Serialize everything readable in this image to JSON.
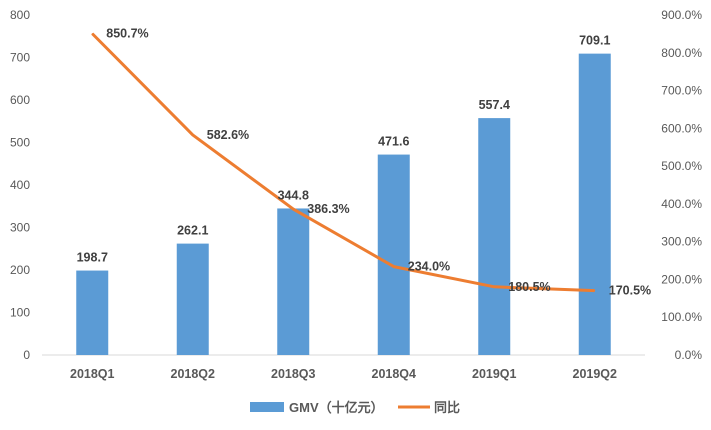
{
  "chart_data": {
    "type": "bar",
    "title": "",
    "categories": [
      "2018Q1",
      "2018Q2",
      "2018Q3",
      "2018Q4",
      "2019Q1",
      "2019Q2"
    ],
    "series": [
      {
        "name": "GMV（十亿元）",
        "type": "bar",
        "axis": "left",
        "color": "#5B9BD5",
        "values": [
          198.7,
          262.1,
          344.8,
          471.6,
          557.4,
          709.1
        ],
        "labels": [
          "198.7",
          "262.1",
          "344.8",
          "471.6",
          "557.4",
          "709.1"
        ]
      },
      {
        "name": "同比",
        "type": "line",
        "axis": "right",
        "color": "#ED7D31",
        "values": [
          850.7,
          582.6,
          386.3,
          234.0,
          180.5,
          170.5
        ],
        "labels": [
          "850.7%",
          "582.6%",
          "386.3%",
          "234.0%",
          "180.5%",
          "170.5%"
        ]
      }
    ],
    "left_axis": {
      "ylim": [
        0,
        800
      ],
      "ticks": [
        "0",
        "100",
        "200",
        "300",
        "400",
        "500",
        "600",
        "700",
        "800"
      ]
    },
    "right_axis": {
      "ylim": [
        0,
        900
      ],
      "ticks": [
        "0.0%",
        "100.0%",
        "200.0%",
        "300.0%",
        "400.0%",
        "500.0%",
        "600.0%",
        "700.0%",
        "800.0%",
        "900.0%"
      ]
    },
    "legend": {
      "position": "bottom",
      "entries": [
        "GMV（十亿元）",
        "同比"
      ]
    },
    "grid": false
  }
}
